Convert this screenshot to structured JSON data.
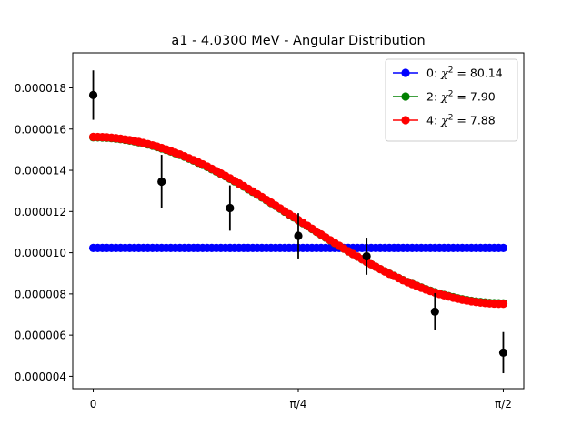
{
  "chart_data": {
    "type": "scatter",
    "title": "a1 - 4.0300 MeV - Angular Distribution",
    "xlabel": "",
    "ylabel": "",
    "xlim": [
      -0.0785,
      1.6493
    ],
    "ylim": [
      3.4e-06,
      1.97e-05
    ],
    "x_ticks": [
      {
        "value": 0,
        "label": "0"
      },
      {
        "value": 0.785398,
        "label": "π/4"
      },
      {
        "value": 1.570796,
        "label": "π/2"
      }
    ],
    "y_ticks": [
      {
        "value": 4e-06,
        "label": "0.000004"
      },
      {
        "value": 6e-06,
        "label": "0.000006"
      },
      {
        "value": 8e-06,
        "label": "0.000008"
      },
      {
        "value": 1e-05,
        "label": "0.000010"
      },
      {
        "value": 1.2e-05,
        "label": "0.000012"
      },
      {
        "value": 1.4e-05,
        "label": "0.000014"
      },
      {
        "value": 1.6e-05,
        "label": "0.000016"
      },
      {
        "value": 1.8e-05,
        "label": "0.000018"
      }
    ],
    "legend_placement": "top-right",
    "grid": false,
    "series": [
      {
        "legend_prefix": "0: ",
        "chi2": "80.14",
        "color": "#0000ff",
        "kind": "line-markers",
        "model": "legendre",
        "coeffs": [
          1.023e-05,
          0.0,
          0.0
        ]
      },
      {
        "legend_prefix": "2: ",
        "chi2": "7.90",
        "color": "#008000",
        "kind": "line-markers",
        "model": "legendre",
        "coeffs": [
          1.023e-05,
          5.37e-06,
          0.0
        ]
      },
      {
        "legend_prefix": "4: ",
        "chi2": "7.88",
        "color": "#ff0000",
        "kind": "line-markers",
        "model": "legendre",
        "coeffs": [
          1.023e-05,
          5.41e-06,
          -2e-08
        ]
      }
    ],
    "points_per_curve": 91,
    "experimental": {
      "color": "#000000",
      "x": [
        0.0,
        0.2618,
        0.5236,
        0.7854,
        1.0472,
        1.309,
        1.5708
      ],
      "y": [
        1.765e-05,
        1.345e-05,
        1.217e-05,
        1.082e-05,
        9.83e-06,
        7.14e-06,
        5.15e-06
      ],
      "yerr": [
        1.2e-06,
        1.3e-06,
        1.1e-06,
        1.1e-06,
        9e-07,
        9e-07,
        1e-06
      ]
    }
  }
}
